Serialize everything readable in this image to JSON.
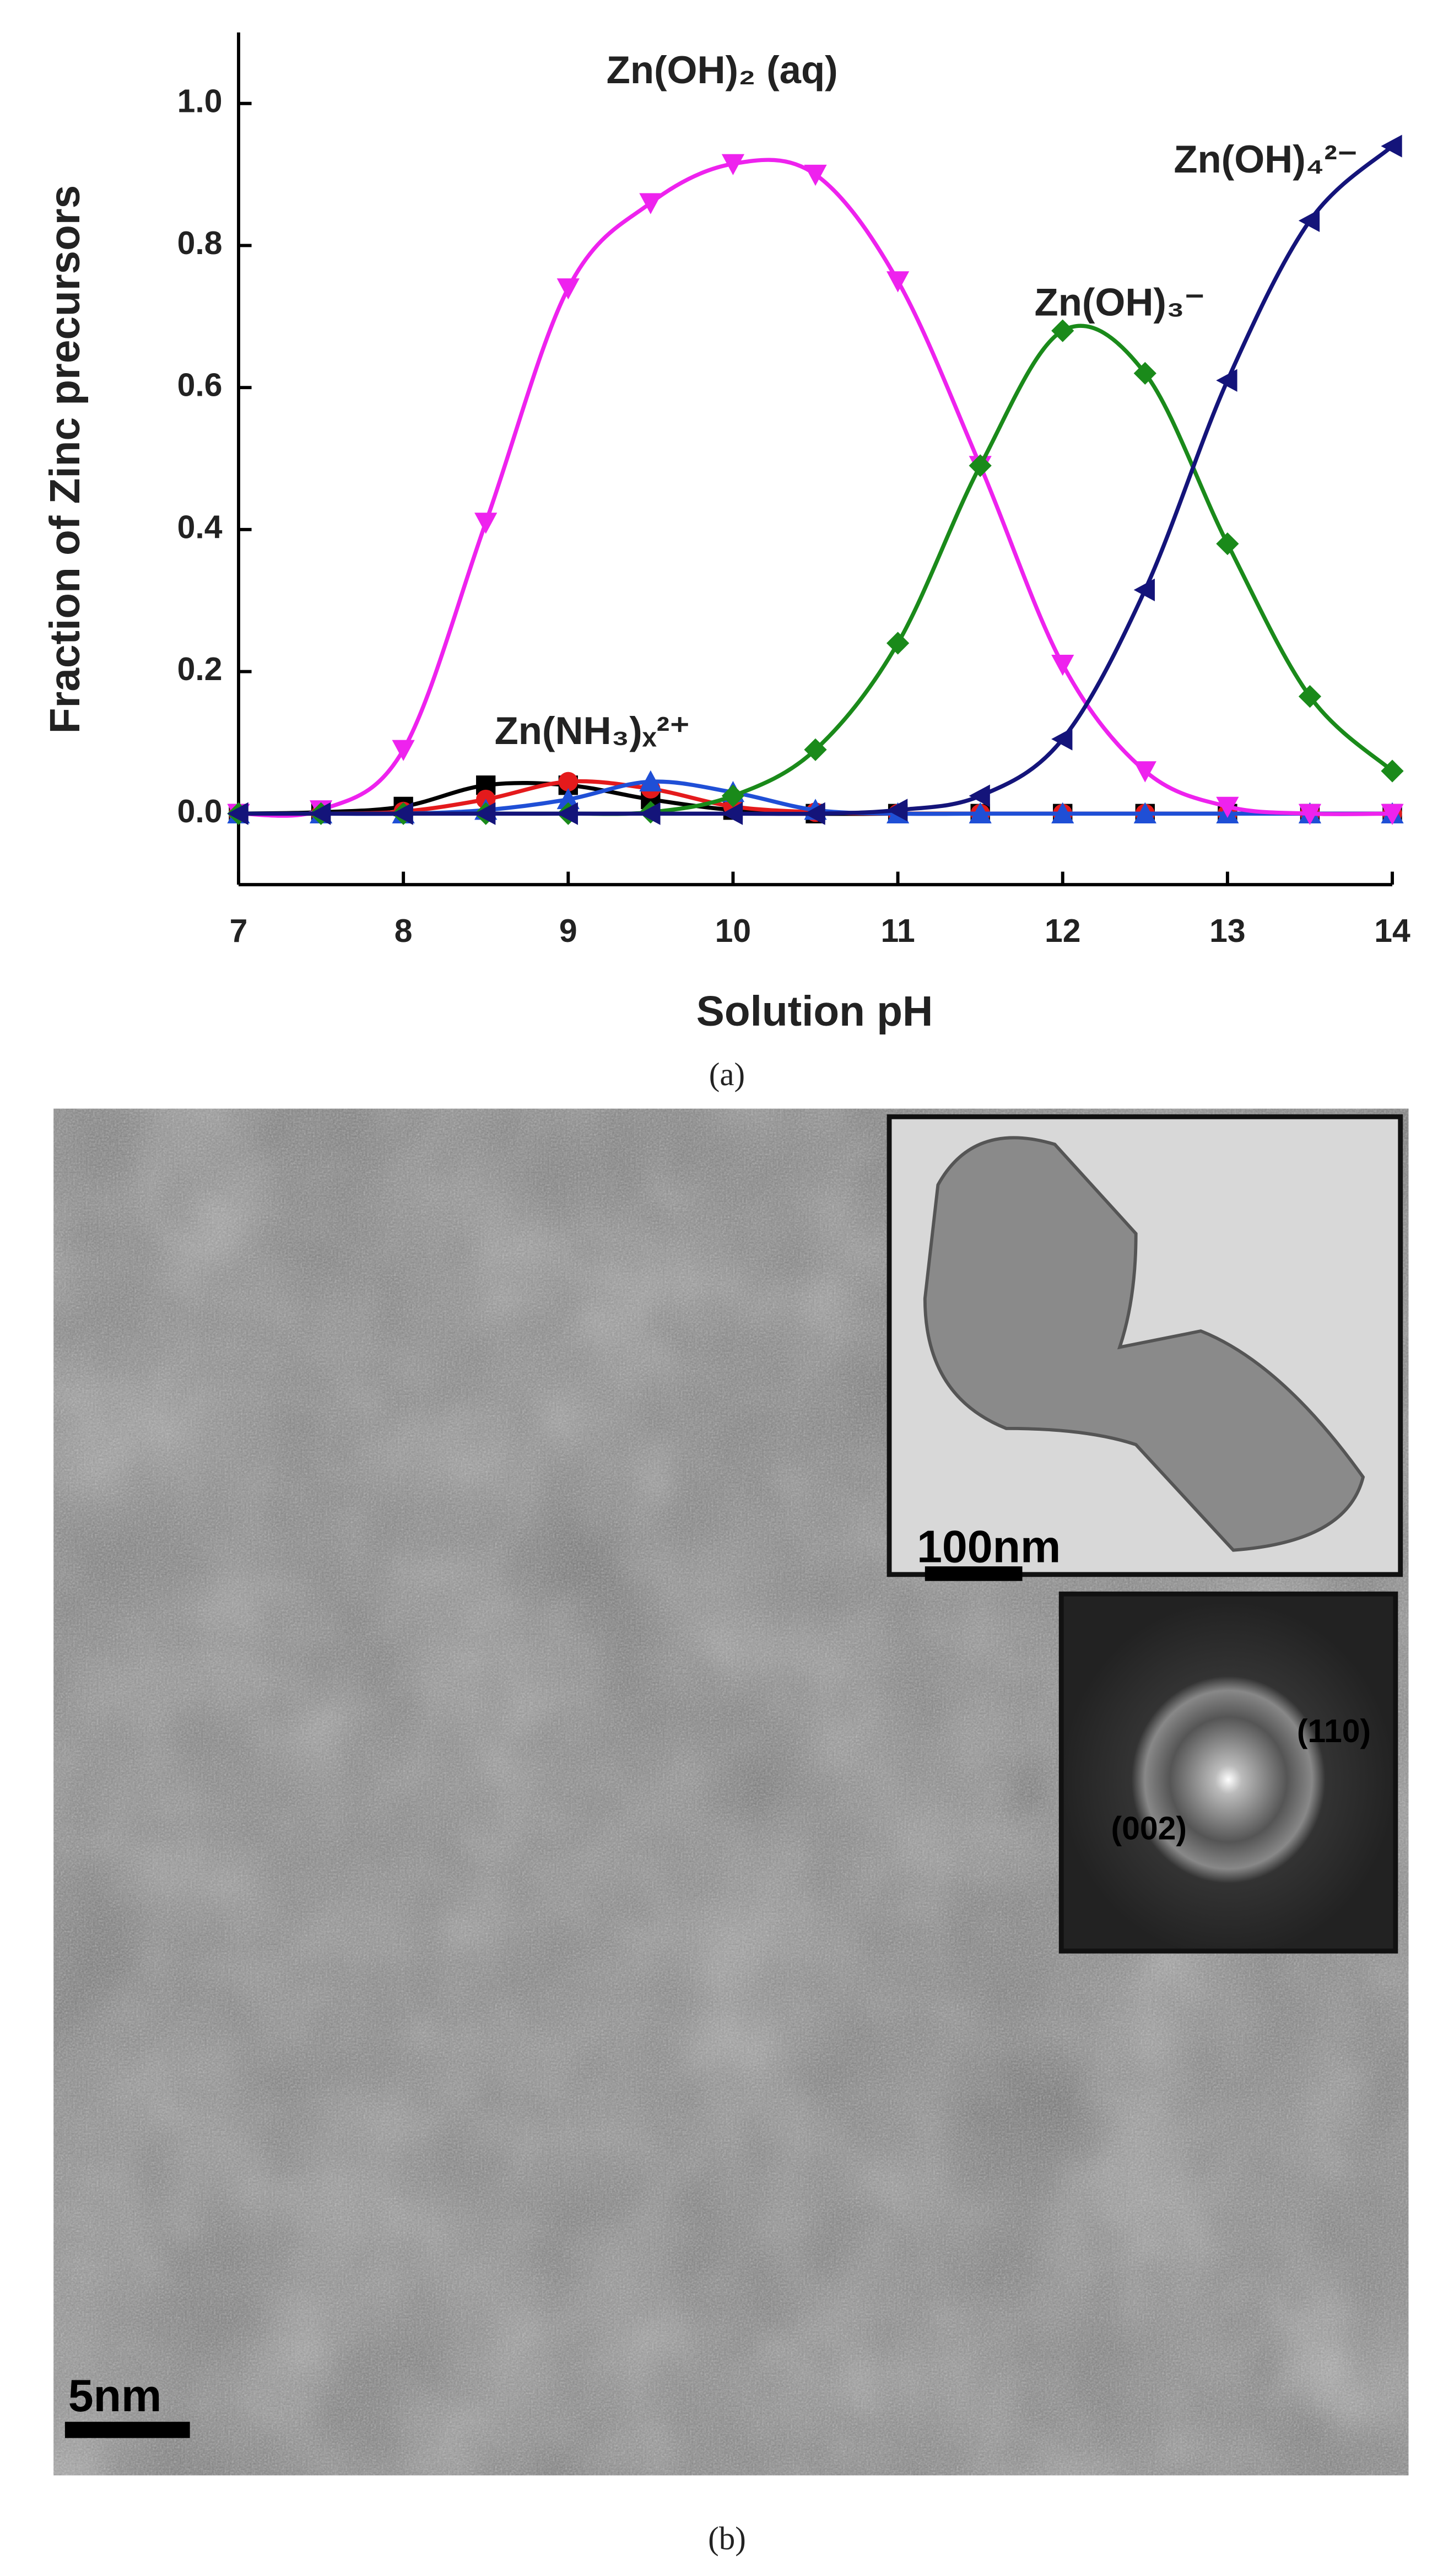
{
  "chart_data": {
    "type": "line",
    "xlabel": "Solution pH",
    "ylabel": "Fraction of Zinc precursors",
    "xlim": [
      7,
      14
    ],
    "ylim": [
      -0.1,
      1.1
    ],
    "xticks": [
      7,
      8,
      9,
      10,
      11,
      12,
      13,
      14
    ],
    "yticks": [
      {
        "value": 0,
        "label": "0.0"
      },
      0.2,
      0.4,
      0.6,
      0.8,
      {
        "value": 1,
        "label": "1.0"
      }
    ],
    "x": [
      7,
      7.5,
      8,
      8.5,
      9,
      9.5,
      10,
      10.5,
      11,
      11.5,
      12,
      12.5,
      13,
      13.5,
      14
    ],
    "series": [
      {
        "color": "#000000",
        "marker": "square",
        "values": [
          0,
          0.002,
          0.01,
          0.04,
          0.04,
          0.02,
          0.005,
          0,
          0,
          0,
          0,
          0,
          0,
          0,
          0
        ]
      },
      {
        "color": "#e41a1c",
        "marker": "circle",
        "values": [
          0,
          0,
          0.003,
          0.02,
          0.045,
          0.035,
          0.01,
          0.002,
          0,
          0,
          0,
          0,
          0,
          0,
          0
        ]
      },
      {
        "color": "#1f4fd6",
        "marker": "triangle-up",
        "values": [
          0,
          0,
          0,
          0.005,
          0.02,
          0.045,
          0.03,
          0.005,
          0,
          0,
          0,
          0,
          0,
          0,
          0
        ]
      },
      {
        "color": "#ee22ee",
        "marker": "triangle-down",
        "values": [
          0,
          0.005,
          0.09,
          0.41,
          0.74,
          0.86,
          0.915,
          0.9,
          0.75,
          0.49,
          0.21,
          0.06,
          0.01,
          0,
          0
        ]
      },
      {
        "color": "#1a8a1a",
        "marker": "diamond",
        "values": [
          0,
          0,
          0,
          0,
          0,
          0.002,
          0.025,
          0.09,
          0.24,
          0.49,
          0.68,
          0.62,
          0.38,
          0.165,
          0.06
        ]
      },
      {
        "color": "#14147a",
        "marker": "triangle-left",
        "values": [
          0,
          0,
          0,
          0,
          0,
          0,
          0,
          0,
          0.005,
          0.025,
          0.105,
          0.315,
          0.61,
          0.835,
          0.94
        ]
      }
    ],
    "annotations": [
      "Zn(OH)₂ (aq)",
      "Zn(OH)₃⁻",
      "Zn(OH)₄²⁻",
      "Zn(NH₃)ₓ²⁺"
    ]
  },
  "captions": [
    "(a)",
    "(b)"
  ],
  "micrograph": {
    "scale_bar": "5nm",
    "inset_scale_bar": "100nm",
    "diffraction_labels": [
      "(110)",
      "(002)"
    ]
  }
}
